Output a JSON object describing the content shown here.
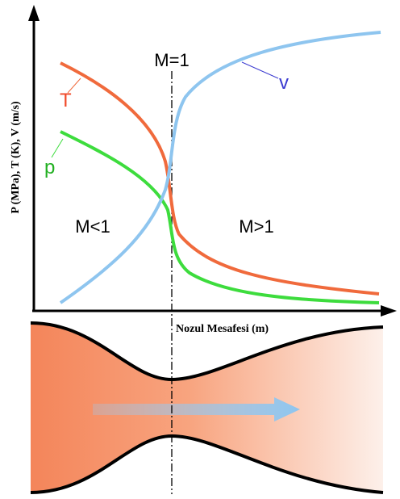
{
  "y_axis_label": "P (MPa), T (K), V (m/s)",
  "x_axis_label": "Nozul Mesafesi (m)",
  "throat_label": "M=1",
  "subsonic_label": "M<1",
  "supersonic_label": "M>1",
  "curves": [
    {
      "label": "T"
    },
    {
      "label": "p"
    },
    {
      "label": "v"
    }
  ]
}
